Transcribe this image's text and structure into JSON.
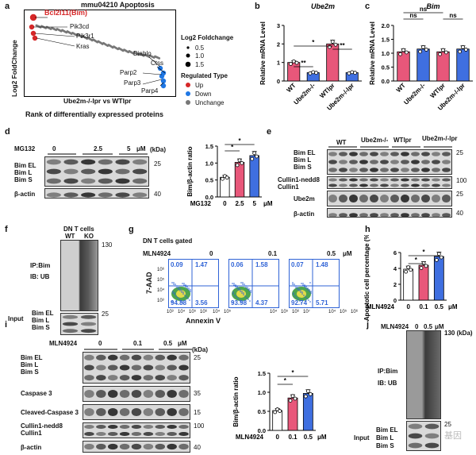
{
  "colors": {
    "up": "#d62728",
    "down": "#1f77e4",
    "unchange": "#777777",
    "pink": "#e8577a",
    "blue": "#3f6fe0",
    "white": "#ffffff",
    "flow": "#2f63d6",
    "accent_red": "#d62728"
  },
  "panel_labels": {
    "a": "a",
    "b": "b",
    "c": "c",
    "d": "d",
    "e": "e",
    "f": "f",
    "g": "g",
    "h": "h",
    "i": "i",
    "j": "j"
  },
  "a": {
    "title": "mmu04210 Apoptosis",
    "ylabel": "Log2 FoldChange",
    "xlabel": "Rank of differentially expressed proteins",
    "subtitle": "Ube2m-/-lpr vs WTlpr",
    "genes": [
      "Bcl2l11(Bim)",
      "Pik3cd",
      "Pik3r1",
      "Kras",
      "Diablo",
      "Ctss",
      "Parp2",
      "Parp3",
      "Parp4"
    ],
    "legend_size_title": "Log2 Foldchange",
    "sizes": [
      "0.5",
      "1.0",
      "1.5"
    ],
    "legend_type_title": "Regulated Type",
    "types": [
      "Up",
      "Down",
      "Unchange"
    ]
  },
  "chart_data": [
    {
      "panel": "b",
      "type": "bar",
      "title": "Ube2m",
      "ylabel": "Relative mRNA Level",
      "categories": [
        "WT",
        "Ube2m-/-",
        "WTlpr",
        "Ube2m-/-lpr"
      ],
      "values": [
        1.0,
        0.45,
        2.0,
        0.45
      ],
      "yticks": [
        "0",
        "1",
        "2",
        "3"
      ],
      "ylim": [
        0,
        3
      ],
      "sig": [
        "**",
        "*",
        "**"
      ]
    },
    {
      "panel": "c",
      "type": "bar",
      "title": "Bim",
      "ylabel": "Relative mRNA Level",
      "categories": [
        "WT",
        "Ube2m-/-",
        "WTlpr",
        "Ube2m-/-lpr"
      ],
      "values": [
        1.05,
        1.15,
        1.05,
        1.15
      ],
      "yticks": [
        "0.0",
        "0.5",
        "1.0",
        "1.5",
        "2.0"
      ],
      "ylim": [
        0,
        2
      ],
      "sig": [
        "ns",
        "ns",
        "ns"
      ]
    },
    {
      "panel": "d",
      "type": "bar",
      "title": "",
      "ylabel": "Bim/β-actin ratio",
      "xprefix": "MG132",
      "categories": [
        "0",
        "2.5",
        "5"
      ],
      "unit": "μM",
      "values": [
        0.58,
        1.02,
        1.22
      ],
      "yticks": [
        "0.0",
        "0.5",
        "1.0",
        "1.5"
      ],
      "ylim": [
        0,
        1.5
      ],
      "sig": [
        "*",
        "*"
      ]
    },
    {
      "panel": "h",
      "type": "bar",
      "title": "",
      "ylabel": "Apoptotic cell percentage (%)",
      "xprefix": "MLN4924",
      "categories": [
        "0",
        "0.1",
        "0.5"
      ],
      "unit": "μM",
      "values": [
        3.9,
        4.4,
        5.5
      ],
      "yticks": [
        "0",
        "2",
        "4",
        "6"
      ],
      "ylim": [
        0,
        6
      ],
      "sig": [
        "*",
        "*"
      ]
    },
    {
      "panel": "i",
      "type": "bar",
      "title": "",
      "ylabel": "Bim/β-actin ratio",
      "xprefix": "MLN4924",
      "categories": [
        "0",
        "0.1",
        "0.5"
      ],
      "unit": "μM",
      "values": [
        0.52,
        0.85,
        0.97
      ],
      "yticks": [
        "0.0",
        "0.5",
        "1.0",
        "1.5"
      ],
      "ylim": [
        0,
        1.5
      ],
      "sig": [
        "*",
        "*"
      ]
    }
  ],
  "d": {
    "treat": "MG132",
    "doses": [
      "0",
      "2.5",
      "5"
    ],
    "unit": "μM",
    "kda": "(kDa)",
    "rows": [
      "Bim EL",
      "Bim L",
      "Bim S",
      "β-actin"
    ],
    "markers": [
      "25",
      "40"
    ]
  },
  "e": {
    "groups": [
      "WT",
      "Ube2m-/-",
      "WTlpr",
      "Ube2m-/-lpr"
    ],
    "rows": [
      "Bim EL",
      "Bim L",
      "Bim S",
      "Cullin1-nedd8",
      "Cullin1",
      "Ube2m",
      "β-actin"
    ],
    "markers": [
      "25",
      "100",
      "25",
      "40"
    ]
  },
  "f": {
    "header": "DN T cells",
    "lanes": [
      "WT",
      "KO"
    ],
    "ip": "IP:Bim",
    "ib": "IB: UB",
    "input": "Input",
    "rows": [
      "Bim EL",
      "Bim L",
      "Bim S"
    ],
    "markers": [
      "130",
      "25"
    ]
  },
  "g": {
    "title": "DN T cells gated",
    "treat": "MLN4924",
    "doses": [
      "0",
      "0.1",
      "0.5"
    ],
    "unit": "μM",
    "ylabel": "7-AAD",
    "xlabel": "Annexin V",
    "ticks": [
      "10³",
      "10⁴",
      "10⁵",
      "10⁶",
      "10⁷"
    ],
    "yticks": [
      "10³",
      "10⁴",
      "10⁵",
      "10⁶"
    ],
    "plots": [
      {
        "q1": "0.09",
        "q2": "1.47",
        "q3": "94.88",
        "q4": "3.56"
      },
      {
        "q1": "0.06",
        "q2": "1.58",
        "q3": "93.98",
        "q4": "4.37"
      },
      {
        "q1": "0.07",
        "q2": "1.48",
        "q3": "92.74",
        "q4": "5.71"
      }
    ]
  },
  "i": {
    "treat": "MLN4924",
    "doses": [
      "0",
      "0.1",
      "0.5"
    ],
    "unit": "μM",
    "kda": "(kDa)",
    "rows": [
      "Bim EL",
      "Bim L",
      "Bim S",
      "Caspase 3",
      "Cleaved-Caspase 3",
      "Cullin1-nedd8",
      "Cullin1",
      "β-actin"
    ],
    "markers": [
      "25",
      "35",
      "15",
      "100",
      "40"
    ]
  },
  "j": {
    "treat": "MLN4924",
    "doses": [
      "0",
      "0.5"
    ],
    "unit": "μM",
    "kda": "130 (kDa)",
    "ip": "IP:Bim",
    "ib": "IB: UB",
    "input": "Input",
    "rows": [
      "Bim EL",
      "Bim L",
      "Bim S"
    ],
    "markers": [
      "25"
    ]
  },
  "watermark": "基因"
}
